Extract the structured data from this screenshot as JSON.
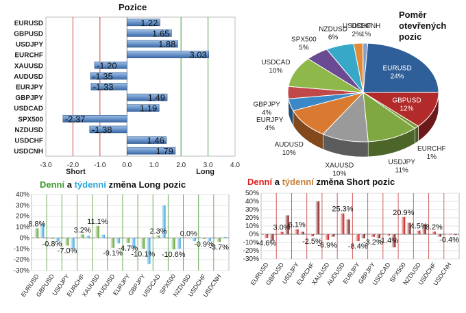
{
  "chart_data": [
    {
      "id": "positions",
      "type": "bar",
      "orientation": "horizontal",
      "title": "Pozice",
      "categories": [
        "EURUSD",
        "GBPUSD",
        "USDJPY",
        "EURCHF",
        "XAUUSD",
        "AUDUSD",
        "EURJPY",
        "GBPJPY",
        "USDCAD",
        "SPX500",
        "NZDUSD",
        "USDCHF",
        "USDCNH"
      ],
      "values": [
        1.22,
        1.65,
        1.88,
        3.03,
        -1.2,
        -1.35,
        -1.33,
        1.49,
        1.19,
        -2.37,
        -1.38,
        1.46,
        1.79
      ],
      "labels": [
        "1.22",
        "1.65",
        "1.88",
        "3.03",
        "-1.20",
        "-1.35",
        "-1.33",
        "1.49",
        "1.19",
        "-2.37",
        "-1.38",
        "1.46",
        "1.79"
      ],
      "xlim": [
        -3.0,
        4.0
      ],
      "xticks": [
        "-3.0",
        "-2.0",
        "-1.0",
        "0.0",
        "1.0",
        "2.0",
        "3.0",
        "4.0"
      ],
      "short_label": "Short",
      "long_label": "Long",
      "colors": {
        "bar": "#4f7fbf",
        "short_line": "#d04040",
        "long_line": "#40a040"
      }
    },
    {
      "id": "ratio",
      "type": "pie",
      "title_lines": [
        "Poměr",
        "otevřených",
        "pozic"
      ],
      "slices": [
        {
          "name": "EURUSD",
          "value": 24,
          "label": "24%",
          "color": "#2e5f98"
        },
        {
          "name": "GBPUSD",
          "value": 12,
          "label": "12%",
          "color": "#b22a2a"
        },
        {
          "name": "EURCHF",
          "value": 1,
          "label": "1%",
          "color": "#7a9a3a"
        },
        {
          "name": "USDJPY",
          "value": 11,
          "label": "11%",
          "color": "#7fa843"
        },
        {
          "name": "XAUUSD",
          "value": 10,
          "label": "10%",
          "color": "#9a9a9a"
        },
        {
          "name": "AUDUSD",
          "value": 10,
          "label": "10%",
          "color": "#d97a30"
        },
        {
          "name": "EURJPY",
          "value": 4,
          "label": "4%",
          "color": "#3a88c8"
        },
        {
          "name": "GBPJPY",
          "value": 4,
          "label": "4%",
          "color": "#c04848"
        },
        {
          "name": "USDCAD",
          "value": 10,
          "label": "10%",
          "color": "#8fb84a"
        },
        {
          "name": "SPX500",
          "value": 5,
          "label": "5%",
          "color": "#6a4a92"
        },
        {
          "name": "NZDUSD",
          "value": 6,
          "label": "6%",
          "color": "#38a8c8"
        },
        {
          "name": "USDCHF",
          "value": 2,
          "label": "2%",
          "color": "#e08a3a"
        },
        {
          "name": "USDCNH",
          "value": 1,
          "label": "1%",
          "color": "#7f9fcf"
        }
      ]
    },
    {
      "id": "long_change",
      "type": "bar",
      "title_parts": [
        "Denní",
        " a ",
        "týdenní",
        " změna Long pozic"
      ],
      "categories": [
        "EURUSD",
        "GBPUSD",
        "USDJPY",
        "EURCHF",
        "XAUUSD",
        "AUDUSD",
        "EURJPY",
        "GBPJPY",
        "USDCAD",
        "SPX500",
        "NZDUSD",
        "USDCHF",
        "USDCNH"
      ],
      "series": [
        {
          "values": [
            8.8,
            -0.8,
            -7.0,
            3.2,
            11.1,
            -9.1,
            -4.7,
            -10.1,
            2.3,
            -10.6,
            0.0,
            -0.9,
            -3.7
          ],
          "color": "#5aa02c"
        },
        {
          "values": [
            13,
            -3,
            -10,
            2,
            3,
            -5,
            -9,
            -24,
            30,
            -10,
            -3,
            -3,
            1
          ],
          "color": "#3aa8e0"
        }
      ],
      "data_labels": [
        {
          "i": 0,
          "text": "8.8%"
        },
        {
          "i": 1,
          "text": "-0.8%"
        },
        {
          "i": 2,
          "text": "-7.0%"
        },
        {
          "i": 3,
          "text": "3.2%"
        },
        {
          "i": 4,
          "text": "11.1%"
        },
        {
          "i": 5,
          "text": "-9.1%"
        },
        {
          "i": 6,
          "text": "-4.7%"
        },
        {
          "i": 7,
          "text": "-10.1%"
        },
        {
          "i": 8,
          "text": "2.3%"
        },
        {
          "i": 9,
          "text": "-10.6%"
        },
        {
          "i": 10,
          "text": "0.0%"
        },
        {
          "i": 11,
          "text": "-0.9%"
        },
        {
          "i": 12,
          "text": "-3.7%"
        }
      ],
      "ylim": [
        -30,
        40
      ],
      "yticks": [
        "40%",
        "30%",
        "20%",
        "10%",
        "0%",
        "-10%",
        "-20%",
        "-30%"
      ]
    },
    {
      "id": "short_change",
      "type": "bar",
      "title_parts": [
        "Denní",
        " a ",
        "týdenní",
        " změna Short pozic"
      ],
      "categories": [
        "EURUSD",
        "GBPUSD",
        "USDJPY",
        "EURCHF",
        "XAUUSD",
        "AUDUSD",
        "EURJPY",
        "GBPJPY",
        "USDCAD",
        "SPX500",
        "NZDUSD",
        "USDCHF",
        "USDCNH"
      ],
      "series": [
        {
          "values": [
            -4.6,
            3.0,
            6.1,
            -2.5,
            -6.9,
            25.3,
            -8.4,
            -3.2,
            -1.4,
            20.9,
            4.5,
            3.2,
            -0.4
          ],
          "color": "#c81818"
        },
        {
          "values": [
            -8,
            23,
            3,
            40,
            -3,
            18,
            -5,
            -5,
            -16,
            14,
            12,
            -3,
            -1
          ],
          "color": "#7a1010"
        }
      ],
      "data_labels": [
        {
          "i": 0,
          "text": "-4.6%"
        },
        {
          "i": 1,
          "text": "3.0%"
        },
        {
          "i": 2,
          "text": "6.1%"
        },
        {
          "i": 3,
          "text": "-2.5%"
        },
        {
          "i": 4,
          "text": "-6.9%"
        },
        {
          "i": 5,
          "text": "25.3%"
        },
        {
          "i": 6,
          "text": "-8.4%"
        },
        {
          "i": 7,
          "text": "-3.2%"
        },
        {
          "i": 8,
          "text": "-1.4%"
        },
        {
          "i": 9,
          "text": "20.9%"
        },
        {
          "i": 10,
          "text": "4.5%"
        },
        {
          "i": 11,
          "text": "3.2%"
        },
        {
          "i": 12,
          "text": "-0.4%"
        }
      ],
      "ylim": [
        -30,
        50
      ],
      "yticks": [
        "50%",
        "40%",
        "30%",
        "20%",
        "10%",
        "0%",
        "-10%",
        "-20%",
        "-30%"
      ]
    }
  ]
}
